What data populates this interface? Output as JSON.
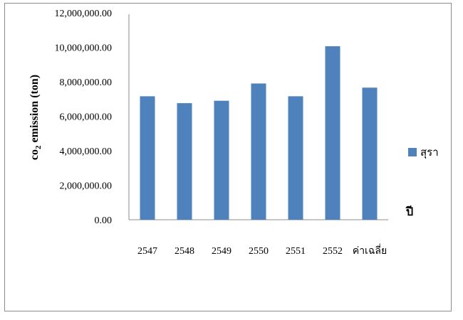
{
  "chart_data": {
    "type": "bar",
    "categories": [
      "2547",
      "2548",
      "2549",
      "2550",
      "2551",
      "2552",
      "ค่าเฉลี่ย"
    ],
    "series": [
      {
        "name": "สุรา",
        "values": [
          7160000,
          6760000,
          6900000,
          7900000,
          7160000,
          10060000,
          7660000
        ],
        "color": "#4f81bd"
      }
    ],
    "ylabel_main": "co",
    "ylabel_sub": "2",
    "ylabel_rest": " emission (ton)",
    "xlabel": "ปี",
    "ylim": [
      0,
      12000000
    ],
    "yticks": [
      "0.00",
      "2,000,000.00",
      "4,000,000.00",
      "6,000,000.00",
      "8,000,000.00",
      "10,000,000.00",
      "12,000,000.00"
    ],
    "grid": false,
    "legend": "right"
  }
}
